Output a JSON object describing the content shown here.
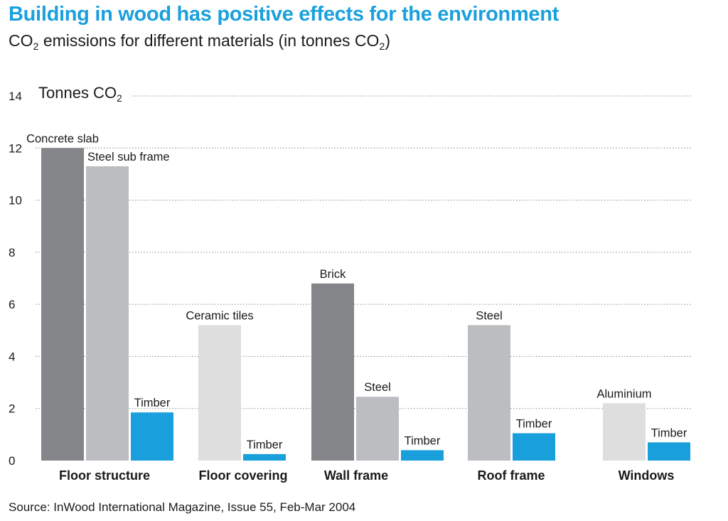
{
  "title": "Building in wood has positive effects for the environment",
  "subtitle": {
    "prefix": "CO",
    "sub": "2",
    "middle": " emissions for different materials (in tonnes CO",
    "sub2": "2",
    "suffix": ")"
  },
  "ylabel": {
    "text": "Tonnes CO",
    "sub": "2"
  },
  "source": "Source: InWood International Magazine, Issue 55, Feb-Mar 2004",
  "colors": {
    "title": "#1aa0dc",
    "dark": "#848589",
    "medium": "#bcbdc0",
    "light": "#dededf",
    "timber": "#1a9fdd",
    "grid": "#8a8a8a"
  },
  "chart_data": {
    "type": "bar",
    "title": "Building in wood has positive effects for the environment",
    "subtitle": "CO2 emissions for different materials (in tonnes CO2)",
    "ylabel": "Tonnes CO2",
    "ylim": [
      0,
      14
    ],
    "yticks": [
      0,
      2,
      4,
      6,
      8,
      10,
      12,
      14
    ],
    "grid": "horizontal dotted",
    "categories": [
      "Floor structure",
      "Floor covering",
      "Wall frame",
      "Roof frame",
      "Windows"
    ],
    "groups": [
      {
        "category": "Floor structure",
        "bars": [
          {
            "label": "Concrete slab",
            "value": 12.0,
            "color": "#848589"
          },
          {
            "label": "Steel sub frame",
            "value": 11.3,
            "color": "#bcbdc0"
          },
          {
            "label": "Timber",
            "value": 1.85,
            "color": "#1a9fdd"
          }
        ]
      },
      {
        "category": "Floor covering",
        "bars": [
          {
            "label": "Ceramic tiles",
            "value": 5.2,
            "color": "#dededf"
          },
          {
            "label": "Timber",
            "value": 0.25,
            "color": "#1a9fdd"
          }
        ]
      },
      {
        "category": "Wall frame",
        "bars": [
          {
            "label": "Brick",
            "value": 6.8,
            "color": "#848589"
          },
          {
            "label": "Steel",
            "value": 2.45,
            "color": "#bcbdc0"
          },
          {
            "label": "Timber",
            "value": 0.4,
            "color": "#1a9fdd"
          }
        ]
      },
      {
        "category": "Roof frame",
        "bars": [
          {
            "label": "Steel",
            "value": 5.2,
            "color": "#bcbdc0"
          },
          {
            "label": "Timber",
            "value": 1.05,
            "color": "#1a9fdd"
          }
        ]
      },
      {
        "category": "Windows",
        "bars": [
          {
            "label": "Aluminium",
            "value": 2.2,
            "color": "#dededf"
          },
          {
            "label": "Timber",
            "value": 0.7,
            "color": "#1a9fdd"
          }
        ]
      }
    ]
  }
}
